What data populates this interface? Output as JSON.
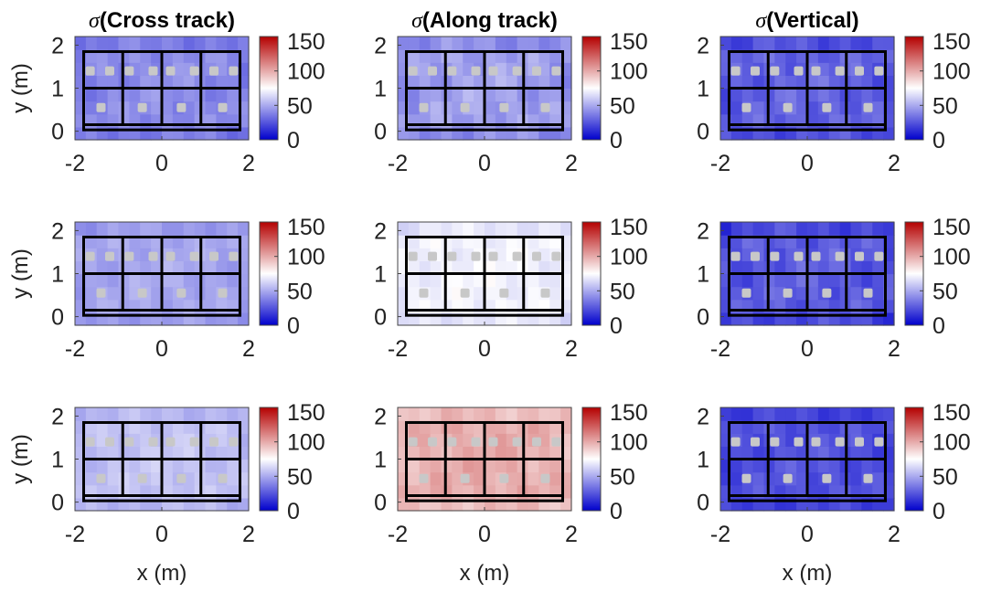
{
  "figure": {
    "colormap": {
      "low": "#0000cc",
      "mid": "#ffffff",
      "high": "#b40000"
    },
    "frame_color": "#000000",
    "beacon_color": "#c8c8c8"
  },
  "chart_data": [
    {
      "type": "heatmap",
      "row": 1,
      "col": 1,
      "title_symbol": "σ",
      "title": "(Cross track)",
      "ylabel": "y (m)",
      "xlabel": "",
      "xlim": [
        -2,
        2
      ],
      "ylim": [
        -0.2,
        2.2
      ],
      "xticks": [
        "-2",
        "0",
        "2"
      ],
      "yticks": [
        "0",
        "1",
        "2"
      ],
      "clim": [
        0,
        150
      ],
      "cticks": [
        "0",
        "50",
        "100",
        "150"
      ],
      "base_value": 42,
      "variation": 5,
      "beacons": {
        "upper_y": 1.4,
        "lower_y": 0.55,
        "upper_x": [
          -1.65,
          -1.2,
          -0.75,
          -0.2,
          0.2,
          0.75,
          1.2,
          1.65
        ],
        "lower_x": [
          -1.4,
          -0.45,
          0.45,
          1.4
        ]
      }
    },
    {
      "type": "heatmap",
      "row": 1,
      "col": 2,
      "title_symbol": "σ",
      "title": "(Along track)",
      "ylabel": "",
      "xlabel": "",
      "xlim": [
        -2,
        2
      ],
      "ylim": [
        -0.2,
        2.2
      ],
      "xticks": [
        "-2",
        "0",
        "2"
      ],
      "yticks": [
        "0",
        "1",
        "2"
      ],
      "clim": [
        0,
        150
      ],
      "cticks": [
        "0",
        "50",
        "100",
        "150"
      ],
      "base_value": 48,
      "variation": 6,
      "beacons": {
        "upper_y": 1.4,
        "lower_y": 0.55,
        "upper_x": [
          -1.65,
          -1.2,
          -0.75,
          -0.2,
          0.2,
          0.75,
          1.2,
          1.65
        ],
        "lower_x": [
          -1.4,
          -0.45,
          0.45,
          1.4
        ]
      }
    },
    {
      "type": "heatmap",
      "row": 1,
      "col": 3,
      "title_symbol": "σ",
      "title": "(Vertical)",
      "ylabel": "",
      "xlabel": "",
      "xlim": [
        -2,
        2
      ],
      "ylim": [
        -0.2,
        2.2
      ],
      "xticks": [
        "-2",
        "0",
        "2"
      ],
      "yticks": [
        "0",
        "1",
        "2"
      ],
      "clim": [
        0,
        150
      ],
      "cticks": [
        "0",
        "50",
        "100",
        "150"
      ],
      "base_value": 30,
      "variation": 6,
      "beacons": {
        "upper_y": 1.4,
        "lower_y": 0.55,
        "upper_x": [
          -1.65,
          -1.2,
          -0.75,
          -0.2,
          0.2,
          0.75,
          1.2,
          1.65
        ],
        "lower_x": [
          -1.4,
          -0.45,
          0.45,
          1.4
        ]
      }
    },
    {
      "type": "heatmap",
      "row": 2,
      "col": 1,
      "title_symbol": "",
      "title": "",
      "ylabel": "y (m)",
      "xlabel": "",
      "xlim": [
        -2,
        2
      ],
      "ylim": [
        -0.2,
        2.2
      ],
      "xticks": [
        "-2",
        "0",
        "2"
      ],
      "yticks": [
        "0",
        "1",
        "2"
      ],
      "clim": [
        0,
        150
      ],
      "cticks": [
        "0",
        "50",
        "100",
        "150"
      ],
      "base_value": 50,
      "variation": 4,
      "beacons": {
        "upper_y": 1.4,
        "lower_y": 0.55,
        "upper_x": [
          -1.65,
          -1.2,
          -0.75,
          -0.2,
          0.2,
          0.75,
          1.2,
          1.65
        ],
        "lower_x": [
          -1.4,
          -0.45,
          0.45,
          1.4
        ]
      }
    },
    {
      "type": "heatmap",
      "row": 2,
      "col": 2,
      "title_symbol": "",
      "title": "",
      "ylabel": "",
      "xlabel": "",
      "xlim": [
        -2,
        2
      ],
      "ylim": [
        -0.2,
        2.2
      ],
      "xticks": [
        "-2",
        "0",
        "2"
      ],
      "yticks": [
        "0",
        "1",
        "2"
      ],
      "clim": [
        0,
        150
      ],
      "cticks": [
        "0",
        "50",
        "100",
        "150"
      ],
      "base_value": 72,
      "variation": 4,
      "beacons": {
        "upper_y": 1.4,
        "lower_y": 0.55,
        "upper_x": [
          -1.65,
          -1.2,
          -0.75,
          -0.2,
          0.2,
          0.75,
          1.2,
          1.65
        ],
        "lower_x": [
          -1.4,
          -0.45,
          0.45,
          1.4
        ]
      }
    },
    {
      "type": "heatmap",
      "row": 2,
      "col": 3,
      "title_symbol": "",
      "title": "",
      "ylabel": "",
      "xlabel": "",
      "xlim": [
        -2,
        2
      ],
      "ylim": [
        -0.2,
        2.2
      ],
      "xticks": [
        "-2",
        "0",
        "2"
      ],
      "yticks": [
        "0",
        "1",
        "2"
      ],
      "clim": [
        0,
        150
      ],
      "cticks": [
        "0",
        "50",
        "100",
        "150"
      ],
      "base_value": 28,
      "variation": 6,
      "beacons": {
        "upper_y": 1.4,
        "lower_y": 0.55,
        "upper_x": [
          -1.65,
          -1.2,
          -0.75,
          -0.2,
          0.2,
          0.75,
          1.2,
          1.65
        ],
        "lower_x": [
          -1.4,
          -0.45,
          0.45,
          1.4
        ]
      }
    },
    {
      "type": "heatmap",
      "row": 3,
      "col": 1,
      "title_symbol": "",
      "title": "",
      "ylabel": "y (m)",
      "xlabel": "x (m)",
      "xlim": [
        -2,
        2
      ],
      "ylim": [
        -0.2,
        2.2
      ],
      "xticks": [
        "-2",
        "0",
        "2"
      ],
      "yticks": [
        "0",
        "1",
        "2"
      ],
      "clim": [
        0,
        150
      ],
      "cticks": [
        "0",
        "50",
        "100",
        "150"
      ],
      "base_value": 58,
      "variation": 4,
      "beacons": {
        "upper_y": 1.4,
        "lower_y": 0.55,
        "upper_x": [
          -1.65,
          -1.2,
          -0.75,
          -0.2,
          0.2,
          0.75,
          1.2,
          1.65
        ],
        "lower_x": [
          -1.4,
          -0.45,
          0.45,
          1.4
        ]
      }
    },
    {
      "type": "heatmap",
      "row": 3,
      "col": 2,
      "title_symbol": "",
      "title": "",
      "ylabel": "",
      "xlabel": "x (m)",
      "xlim": [
        -2,
        2
      ],
      "ylim": [
        -0.2,
        2.2
      ],
      "xticks": [
        "-2",
        "0",
        "2"
      ],
      "yticks": [
        "0",
        "1",
        "2"
      ],
      "clim": [
        0,
        150
      ],
      "cticks": [
        "0",
        "50",
        "100",
        "150"
      ],
      "base_value": 100,
      "variation": 5,
      "beacons": {
        "upper_y": 1.4,
        "lower_y": 0.55,
        "upper_x": [
          -1.65,
          -1.2,
          -0.75,
          -0.2,
          0.2,
          0.75,
          1.2,
          1.65
        ],
        "lower_x": [
          -1.4,
          -0.45,
          0.45,
          1.4
        ]
      }
    },
    {
      "type": "heatmap",
      "row": 3,
      "col": 3,
      "title_symbol": "",
      "title": "",
      "ylabel": "",
      "xlabel": "x (m)",
      "xlim": [
        -2,
        2
      ],
      "ylim": [
        -0.2,
        2.2
      ],
      "xticks": [
        "-2",
        "0",
        "2"
      ],
      "yticks": [
        "0",
        "1",
        "2"
      ],
      "clim": [
        0,
        150
      ],
      "cticks": [
        "0",
        "50",
        "100",
        "150"
      ],
      "base_value": 25,
      "variation": 5,
      "beacons": {
        "upper_y": 1.4,
        "lower_y": 0.55,
        "upper_x": [
          -1.65,
          -1.2,
          -0.75,
          -0.2,
          0.2,
          0.75,
          1.2,
          1.65
        ],
        "lower_x": [
          -1.4,
          -0.45,
          0.45,
          1.4
        ]
      }
    }
  ]
}
